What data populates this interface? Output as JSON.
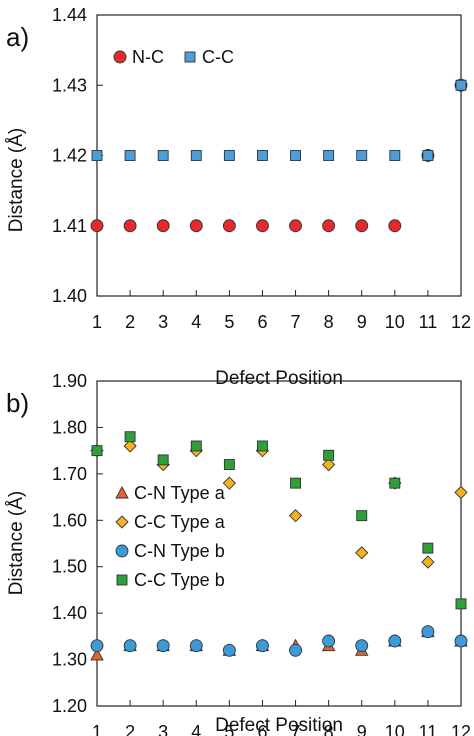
{
  "chart_data": [
    {
      "type": "scatter",
      "panel_label": "a)",
      "xlabel": "Defect Position",
      "ylabel": "Distance (Å)",
      "xlim": [
        1,
        12
      ],
      "ylim": [
        1.4,
        1.44
      ],
      "xticks": [
        1,
        2,
        3,
        4,
        5,
        6,
        7,
        8,
        9,
        10,
        11,
        12
      ],
      "yticks": [
        1.4,
        1.41,
        1.42,
        1.43,
        1.44
      ],
      "ytick_labels": [
        "1.40",
        "1.41",
        "1.42",
        "1.43",
        "1.44"
      ],
      "legend_position": "top-left",
      "grid": false,
      "series": [
        {
          "name": "N-C",
          "marker": "circle",
          "color": "#e8282b",
          "x": [
            1,
            2,
            3,
            4,
            5,
            6,
            7,
            8,
            9,
            10,
            11,
            12
          ],
          "y": [
            1.41,
            1.41,
            1.41,
            1.41,
            1.41,
            1.41,
            1.41,
            1.41,
            1.41,
            1.41,
            1.42,
            1.43
          ]
        },
        {
          "name": "C-C",
          "marker": "square",
          "color": "#4a9fd8",
          "x": [
            1,
            2,
            3,
            4,
            5,
            6,
            7,
            8,
            9,
            10,
            11,
            12
          ],
          "y": [
            1.42,
            1.42,
            1.42,
            1.42,
            1.42,
            1.42,
            1.42,
            1.42,
            1.42,
            1.42,
            1.42,
            1.43
          ]
        }
      ]
    },
    {
      "type": "scatter",
      "panel_label": "b)",
      "xlabel": "Defect Position",
      "ylabel": "Distance (Å)",
      "xlim": [
        1,
        12
      ],
      "ylim": [
        1.2,
        1.9
      ],
      "xticks": [
        1,
        2,
        3,
        4,
        5,
        6,
        7,
        8,
        9,
        10,
        11,
        12
      ],
      "yticks": [
        1.2,
        1.3,
        1.4,
        1.5,
        1.6,
        1.7,
        1.8,
        1.9
      ],
      "ytick_labels": [
        "1.20",
        "1.30",
        "1.40",
        "1.50",
        "1.60",
        "1.70",
        "1.80",
        "1.90"
      ],
      "legend_position": "left",
      "grid": false,
      "series": [
        {
          "name": "C-N Type a",
          "marker": "triangle",
          "color": "#e3632b",
          "x": [
            1,
            2,
            3,
            4,
            5,
            6,
            7,
            8,
            9,
            10,
            11,
            12
          ],
          "y": [
            1.31,
            1.33,
            1.33,
            1.33,
            1.32,
            1.33,
            1.33,
            1.33,
            1.32,
            1.34,
            1.36,
            1.34
          ]
        },
        {
          "name": "C-C Type a",
          "marker": "diamond",
          "color": "#f5b21e",
          "x": [
            1,
            2,
            3,
            4,
            5,
            6,
            7,
            8,
            9,
            10,
            11,
            12
          ],
          "y": [
            1.75,
            1.76,
            1.72,
            1.75,
            1.68,
            1.75,
            1.61,
            1.72,
            1.53,
            1.68,
            1.51,
            1.66
          ]
        },
        {
          "name": "C-N Type b",
          "marker": "circle",
          "color": "#3c9ad8",
          "x": [
            1,
            2,
            3,
            4,
            5,
            6,
            7,
            8,
            9,
            10,
            11,
            12
          ],
          "y": [
            1.33,
            1.33,
            1.33,
            1.33,
            1.32,
            1.33,
            1.32,
            1.34,
            1.33,
            1.34,
            1.36,
            1.34
          ]
        },
        {
          "name": "C-C Type b",
          "marker": "square",
          "color": "#2ea03a",
          "x": [
            1,
            2,
            3,
            4,
            5,
            6,
            7,
            8,
            9,
            10,
            11,
            12
          ],
          "y": [
            1.75,
            1.78,
            1.73,
            1.76,
            1.72,
            1.76,
            1.68,
            1.74,
            1.61,
            1.68,
            1.54,
            1.42
          ]
        }
      ]
    }
  ]
}
